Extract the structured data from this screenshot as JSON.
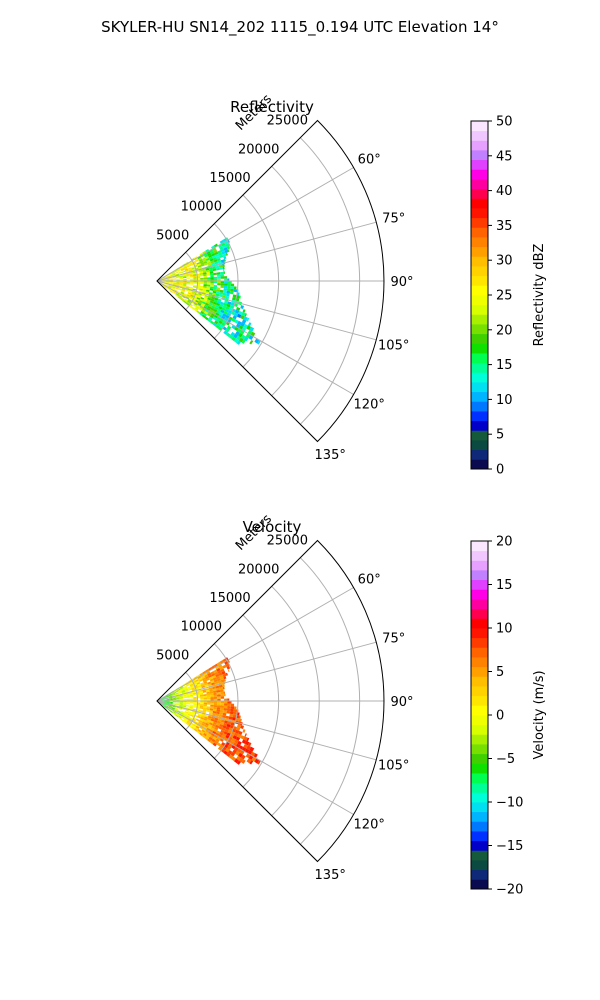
{
  "figure": {
    "suptitle": "SKYLER-HU  SN14_202  1115_0.194 UTC Elevation 14°"
  },
  "chart_data": [
    {
      "type": "heatmap",
      "subtype": "polar-sector",
      "title": "Reflectivity",
      "radial_label": "Meters",
      "radial_ticks": [
        5000,
        10000,
        15000,
        20000,
        25000
      ],
      "radial_tick_labels": [
        "5000",
        "10000",
        "15000",
        "20000",
        "25000"
      ],
      "rlim": [
        0,
        28000
      ],
      "angle_ticks": [
        60,
        75,
        90,
        105,
        120,
        135
      ],
      "angle_tick_labels": [
        "60°",
        "75°",
        "90°",
        "105°",
        "120°",
        "135°"
      ],
      "theta_range_deg": [
        45,
        135
      ],
      "grid": true,
      "colorbar": {
        "label": "Reflectivity dBZ",
        "range": [
          0,
          50
        ],
        "ticks": [
          0,
          5,
          10,
          15,
          20,
          25,
          30,
          35,
          40,
          45,
          50
        ],
        "tick_labels": [
          "0",
          "5",
          "10",
          "15",
          "20",
          "25",
          "30",
          "35",
          "40",
          "45",
          "50"
        ],
        "colors": [
          "#0a0a50",
          "#102878",
          "#0a4a40",
          "#155a3a",
          "#0000c8",
          "#0030ff",
          "#0078ff",
          "#00b4ff",
          "#00e0f0",
          "#00ffd8",
          "#00ff96",
          "#00ff50",
          "#10e000",
          "#40d000",
          "#78e000",
          "#a8f000",
          "#d8ff00",
          "#f0ff00",
          "#ffff00",
          "#ffe600",
          "#ffd200",
          "#ffbe00",
          "#ffa000",
          "#ff8200",
          "#ff6400",
          "#ff3c00",
          "#ff1400",
          "#ff0000",
          "#ff0050",
          "#ff00a0",
          "#ff00e6",
          "#e040ff",
          "#c080ff",
          "#e6a0ff",
          "#f0c8ff",
          "#fae6ff"
        ]
      },
      "echo_extent_m": [
        {
          "az": 60,
          "range": 10200
        },
        {
          "az": 65,
          "range": 9800
        },
        {
          "az": 70,
          "range": 9000
        },
        {
          "az": 75,
          "range": 8600
        },
        {
          "az": 80,
          "range": 8400
        },
        {
          "az": 85,
          "range": 8500
        },
        {
          "az": 90,
          "range": 9200
        },
        {
          "az": 95,
          "range": 10000
        },
        {
          "az": 100,
          "range": 10500
        },
        {
          "az": 105,
          "range": 11000
        },
        {
          "az": 110,
          "range": 11800
        },
        {
          "az": 115,
          "range": 13000
        },
        {
          "az": 120,
          "range": 14800
        },
        {
          "az": 125,
          "range": 12800
        }
      ],
      "typical_value_by_range": [
        {
          "range": 2000,
          "value": 25
        },
        {
          "range": 5000,
          "value": 24
        },
        {
          "range": 7000,
          "value": 18
        },
        {
          "range": 9000,
          "value": 14
        },
        {
          "range": 12000,
          "value": 14
        }
      ]
    },
    {
      "type": "heatmap",
      "subtype": "polar-sector",
      "title": "Velocity",
      "radial_label": "Meters",
      "radial_ticks": [
        5000,
        10000,
        15000,
        20000,
        25000
      ],
      "radial_tick_labels": [
        "5000",
        "10000",
        "15000",
        "20000",
        "25000"
      ],
      "rlim": [
        0,
        28000
      ],
      "angle_ticks": [
        60,
        75,
        90,
        105,
        120,
        135
      ],
      "angle_tick_labels": [
        "60°",
        "75°",
        "90°",
        "105°",
        "120°",
        "135°"
      ],
      "theta_range_deg": [
        45,
        135
      ],
      "grid": true,
      "colorbar": {
        "label": "Velocity (m/s)",
        "range": [
          -20,
          20
        ],
        "ticks": [
          -20,
          -15,
          -10,
          -5,
          0,
          5,
          10,
          15,
          20
        ],
        "tick_labels": [
          "−20",
          "−15",
          "−10",
          "−5",
          "0",
          "5",
          "10",
          "15",
          "20"
        ],
        "colors": [
          "#0a0a50",
          "#102878",
          "#0a4a40",
          "#155a3a",
          "#0000c8",
          "#0030ff",
          "#0078ff",
          "#00b4ff",
          "#00e0f0",
          "#00ffd8",
          "#00ff96",
          "#00ff50",
          "#10e000",
          "#40d000",
          "#78e000",
          "#a8f000",
          "#d8ff00",
          "#f0ff00",
          "#ffff00",
          "#ffe600",
          "#ffd200",
          "#ffbe00",
          "#ffa000",
          "#ff8200",
          "#ff6400",
          "#ff3c00",
          "#ff1400",
          "#ff0000",
          "#ff0050",
          "#ff00a0",
          "#ff00e6",
          "#e040ff",
          "#c080ff",
          "#e6a0ff",
          "#f0c8ff",
          "#fae6ff"
        ]
      },
      "echo_extent_m": [
        {
          "az": 60,
          "range": 10200
        },
        {
          "az": 65,
          "range": 9800
        },
        {
          "az": 70,
          "range": 9000
        },
        {
          "az": 75,
          "range": 8600
        },
        {
          "az": 80,
          "range": 8400
        },
        {
          "az": 85,
          "range": 8500
        },
        {
          "az": 90,
          "range": 9200
        },
        {
          "az": 95,
          "range": 10000
        },
        {
          "az": 100,
          "range": 10500
        },
        {
          "az": 105,
          "range": 11000
        },
        {
          "az": 110,
          "range": 11800
        },
        {
          "az": 115,
          "range": 13000
        },
        {
          "az": 120,
          "range": 14800
        },
        {
          "az": 125,
          "range": 12800
        }
      ],
      "typical_value_by_range": [
        {
          "range": 1000,
          "value": -6
        },
        {
          "range": 2500,
          "value": -2
        },
        {
          "range": 4500,
          "value": 1
        },
        {
          "range": 7000,
          "value": 5
        },
        {
          "range": 10000,
          "value": 8
        }
      ]
    }
  ]
}
